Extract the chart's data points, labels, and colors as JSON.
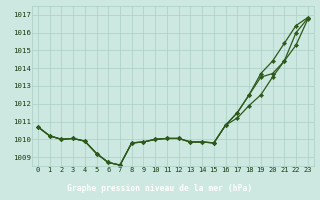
{
  "title": "Graphe pression niveau de la mer (hPa)",
  "hours": [
    0,
    1,
    2,
    3,
    4,
    5,
    6,
    7,
    8,
    9,
    10,
    11,
    12,
    13,
    14,
    15,
    16,
    17,
    18,
    19,
    20,
    21,
    22,
    23
  ],
  "s1": [
    1010.7,
    1010.2,
    1010.0,
    1010.05,
    1009.9,
    1009.2,
    1008.7,
    1008.55,
    1009.8,
    1009.85,
    1010.0,
    1010.05,
    1010.05,
    1009.85,
    1009.85,
    1009.8,
    1010.8,
    1011.5,
    1012.5,
    1013.7,
    1014.4,
    1015.4,
    1016.4,
    1016.85
  ],
  "s2": [
    1010.7,
    1010.2,
    1010.0,
    1010.05,
    1009.9,
    1009.2,
    1008.7,
    1008.55,
    1009.8,
    1009.85,
    1010.0,
    1010.05,
    1010.05,
    1009.85,
    1009.85,
    1009.8,
    1010.8,
    1011.5,
    1012.5,
    1013.5,
    1013.7,
    1014.4,
    1016.0,
    1016.8
  ],
  "s3": [
    1010.7,
    1010.2,
    1010.0,
    1010.05,
    1009.9,
    1009.2,
    1008.7,
    1008.55,
    1009.8,
    1009.85,
    1010.0,
    1010.05,
    1010.05,
    1009.85,
    1009.85,
    1009.8,
    1010.8,
    1011.2,
    1011.9,
    1012.5,
    1013.5,
    1014.4,
    1015.3,
    1016.75
  ],
  "line_color": "#2d5a1b",
  "marker_color": "#2d5a1b",
  "bg_color": "#cce8e0",
  "grid_color": "#aacfc5",
  "tick_color": "#1a3a10",
  "title_bg_color": "#1e6b14",
  "title_text_color": "#ffffff",
  "ylim_min": 1008.5,
  "ylim_max": 1017.5,
  "yticks": [
    1009,
    1010,
    1011,
    1012,
    1013,
    1014,
    1015,
    1016,
    1017
  ],
  "title_fontsize": 5.8,
  "tick_fontsize": 5.0,
  "lw": 0.9,
  "ms": 2.2
}
